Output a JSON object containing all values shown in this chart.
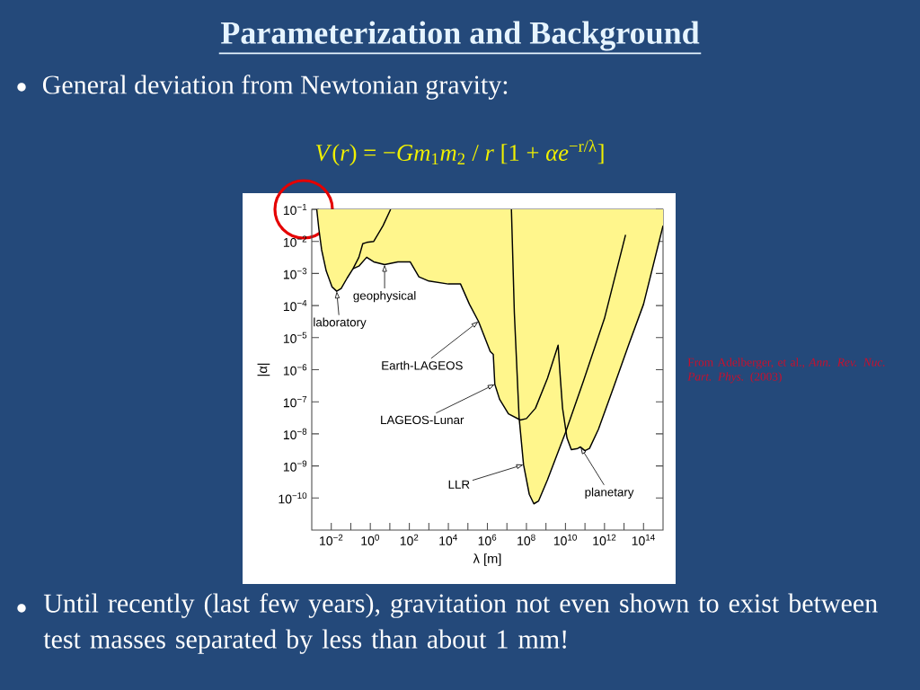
{
  "chart_data": {
    "type": "line",
    "title": "Parameterization and Background",
    "xlabel": "λ [m]",
    "ylabel": "|α|",
    "log": "xy",
    "xlim": [
      0.001,
      1000000000000000.0
    ],
    "ylim": [
      1e-11,
      0.1
    ],
    "xticks": [
      {
        "value": 0.01,
        "label": "10$^{−2}$"
      },
      {
        "value": 0.1,
        "label": null
      },
      {
        "value": 1,
        "label": "10$^{0}$"
      },
      {
        "value": 10,
        "label": null
      },
      {
        "value": 100,
        "label": "10$^{2}$"
      },
      {
        "value": 1000.0,
        "label": null
      },
      {
        "value": 10000.0,
        "label": "10$^{4}$"
      },
      {
        "value": 100000.0,
        "label": null
      },
      {
        "value": 1000000.0,
        "label": "10$^{6}$"
      },
      {
        "value": 10000000.0,
        "label": null
      },
      {
        "value": 100000000.0,
        "label": "10$^{8}$"
      },
      {
        "value": 1000000000.0,
        "label": null
      },
      {
        "value": 10000000000.0,
        "label": "10$^{10}$"
      },
      {
        "value": 100000000000.0,
        "label": null
      },
      {
        "value": 1000000000000.0,
        "label": "10$^{12}$"
      },
      {
        "value": 10000000000000.0,
        "label": null
      },
      {
        "value": 100000000000000.0,
        "label": "10$^{14}$"
      }
    ],
    "yticks": [
      {
        "value": 1e-10,
        "label": "10$^{−10}$"
      },
      {
        "value": 1e-09,
        "label": "10$^{−9}$"
      },
      {
        "value": 1e-08,
        "label": "10$^{−8}$"
      },
      {
        "value": 1e-07,
        "label": "10$^{−7}$"
      },
      {
        "value": 1e-06,
        "label": "10$^{−6}$"
      },
      {
        "value": 1e-05,
        "label": "10$^{−5}$"
      },
      {
        "value": 0.0001,
        "label": "10$^{−4}$"
      },
      {
        "value": 0.001,
        "label": "10$^{−3}$"
      },
      {
        "value": 0.01,
        "label": "10$^{−2}$"
      },
      {
        "value": 0.1,
        "label": "10$^{−1}$"
      }
    ],
    "series": [
      {
        "type": "area",
        "color": "#fff68c",
        "x": [
          0.0018,
          0.0023,
          0.0032,
          0.0055,
          0.011,
          0.019,
          0.032,
          0.065,
          0.13,
          0.26,
          0.65,
          1.5,
          5.4,
          26,
          110,
          310,
          1000,
          10000.0,
          42000.0,
          120000.0,
          350000.0,
          1400000.0,
          2000000.0,
          2400000.0,
          4200000.0,
          12000000.0,
          40000000.0,
          71000000.0,
          140000000.0,
          240000000.0,
          420000000.0,
          1200000000.0,
          11000000000.0,
          12000000000.0,
          20000000000.0,
          42000000000.0,
          59000000000.0,
          100000000000.0,
          170000000000.0,
          490000000000.0,
          2900000000000.0,
          17000000000000.0,
          100000000000000.0,
          1000000000000000.0,
          1000000000000000.0
        ],
        "values": [
          0.1,
          0.025,
          0.0055,
          0.0012,
          0.00038,
          0.00028,
          0.00034,
          0.00072,
          0.0014,
          0.0017,
          0.0032,
          0.0023,
          0.0019,
          0.0023,
          0.0023,
          0.00079,
          0.00058,
          0.00047,
          0.00047,
          0.00011,
          3.2e-05,
          3.7e-06,
          3e-06,
          3.5e-07,
          1.2e-07,
          4.2e-08,
          2.8e-08,
          1.1e-09,
          1.3e-10,
          6.6e-11,
          8.1e-11,
          3.7e-10,
          1.3e-08,
          7.4e-09,
          3.2e-09,
          3.5e-09,
          3.9e-09,
          3e-09,
          3.5e-09,
          1.4e-08,
          2.8e-07,
          5.8e-06,
          0.00011,
          0.031,
          0.1
        ]
      },
      {
        "color": "#000000",
        "x": [
          0.0018,
          0.0023,
          0.0032,
          0.0055,
          0.011,
          0.019,
          0.032,
          0.065,
          0.13,
          0.26,
          0.41,
          0.65,
          1.5,
          4.5,
          11
        ],
        "values": [
          0.1,
          0.025,
          0.0055,
          0.0012,
          0.00038,
          0.00028,
          0.00034,
          0.00072,
          0.0014,
          0.0032,
          0.0085,
          0.0093,
          0.01,
          0.031,
          0.1
        ]
      },
      {
        "color": "#000000",
        "x": [
          0.13,
          0.26,
          0.65,
          1.5,
          5.4,
          26,
          110,
          310,
          1000,
          10000.0,
          42000.0,
          120000.0,
          350000.0,
          1400000.0,
          2000000.0,
          2400000.0,
          4200000.0,
          12000000.0,
          49000000.0,
          100000000.0,
          290000000.0,
          1200000000.0,
          4200000000.0,
          5200000000.0,
          7100000000.0,
          12000000000.0,
          20000000000.0,
          42000000000.0,
          59000000000.0,
          100000000000.0,
          170000000000.0,
          490000000000.0,
          2900000000000.0,
          17000000000000.0,
          100000000000000.0,
          1000000000000000.0
        ],
        "values": [
          0.0014,
          0.0017,
          0.0032,
          0.0023,
          0.0019,
          0.0023,
          0.0023,
          0.00079,
          0.00058,
          0.00047,
          0.00047,
          0.00011,
          3.2e-05,
          3.7e-06,
          3e-06,
          3.5e-07,
          1.2e-07,
          4.2e-08,
          2.7e-08,
          3e-08,
          6.3e-08,
          5.4e-07,
          5.8e-06,
          8.3e-07,
          6.3e-08,
          7.4e-09,
          3.2e-09,
          3.5e-09,
          3.9e-09,
          3e-09,
          3.5e-09,
          1.4e-08,
          2.8e-07,
          5.8e-06,
          0.00011,
          0.031
        ]
      },
      {
        "color": "#000000",
        "x": [
          17000000.0,
          24000000.0,
          42000000.0,
          71000000.0,
          140000000.0,
          240000000.0,
          420000000.0,
          1200000000.0,
          10000000000.0,
          83000000000.0,
          1000000000000.0,
          12000000000000.0
        ],
        "values": [
          0.1,
          6e-05,
          3.3e-08,
          1.1e-09,
          1.3e-10,
          6.6e-11,
          8.1e-11,
          3.7e-10,
          1.1e-08,
          4.4e-07,
          4e-05,
          0.016
        ]
      }
    ],
    "annotations": [
      "General deviation from Newtonian gravity:",
      "*V*(*r*) = −*Gm*$_{1}$*m*$_{2}$ / *r*  [1 + *αe*$^{−r/λ}$]",
      "Until recently (last few years), gravitation not even shown to exist between test masses separated by less than about 1 mm!",
      "From Adelberger, et al., *Ann. Rev. Nuc. Part. Phys.* (2003)",
      {
        "text": "laboratory",
        "x": 0.019,
        "y": 0.00028
      },
      {
        "text": "geophysical",
        "x": 5.4,
        "y": 0.0019
      },
      {
        "text": "Earth-LAGEOS",
        "x": 350000.0,
        "y": 3.2e-05
      },
      {
        "text": "LAGEOS-Lunar",
        "x": 2400000.0,
        "y": 3.5e-07
      },
      {
        "text": "LLR",
        "x": 71000000.0,
        "y": 1.1e-09
      },
      {
        "text": "planetary",
        "x": 59000000000.0,
        "y": 3.9e-09
      }
    ]
  }
}
